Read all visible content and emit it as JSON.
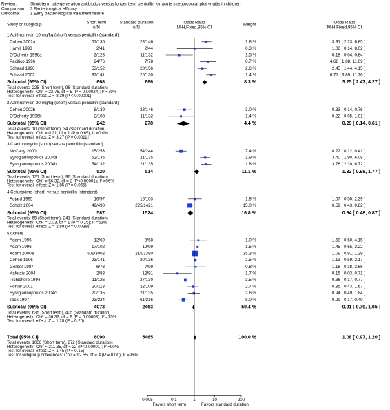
{
  "chart_data": {
    "type": "forest",
    "header": [
      {
        "label": "Review:",
        "text": "Short-term late-generation antibiotics versus longer term penicillin for acute streptococcal pharyngitis in children"
      },
      {
        "label": "Comparison:",
        "text": "3 Bacteriological efficacy"
      },
      {
        "label": "Outcome:",
        "text": "1 Early bacteriological treatment failure"
      }
    ],
    "columns": {
      "study": "Study or subgroup",
      "exp": [
        "Short term",
        "n/N"
      ],
      "ctrl": [
        "Standard duration",
        "n/N"
      ],
      "plot": [
        "Odds Ratio",
        "M-H,Fixed,95% CI"
      ],
      "weight": "Weight",
      "or": [
        "Odds Ratio",
        "M-H,Fixed,95% CI"
      ]
    },
    "log_scale": true,
    "xlim": [
      0.005,
      200
    ],
    "xticks": [
      0.005,
      0.1,
      1,
      10,
      200
    ],
    "box_color": "#1f3fd0",
    "favors_left": "Favors short term",
    "favors_right": "Favors standard duration",
    "groups": [
      {
        "title": "1 Azithromycin 10 mg/kg (short) versus penicillin (standard)",
        "studies": [
          {
            "name": "Cohen 2002a",
            "exp": "57/135",
            "ctrl": "23/146",
            "weight": 1.8,
            "weight_label": "1.8 %",
            "or": 3.91,
            "ci": [
              2.23,
              6.85
            ],
            "or_label": "3.91 [ 2.23, 6.85 ]"
          },
          {
            "name": "Hamill 1993",
            "exp": "2/41",
            "ctrl": "2/44",
            "weight": 0.3,
            "weight_label": "0.3 %",
            "or": 1.08,
            "ci": [
              0.14,
              8.02
            ],
            "or_label": "1.08 [ 0.14, 8.02 ]"
          },
          {
            "name": "O'Doherty 1996a",
            "exp": "2/123",
            "ctrl": "11/132",
            "weight": 1.5,
            "weight_label": "1.5 %",
            "or": 0.18,
            "ci": [
              0.04,
              0.84
            ],
            "or_label": "0.18 [ 0.04, 0.84 ]"
          },
          {
            "name": "Pacifico 1996",
            "exp": "24/76",
            "ctrl": "7/78",
            "weight": 0.7,
            "weight_label": "0.7 %",
            "or": 4.68,
            "ci": [
              1.88,
              11.69
            ],
            "or_label": "4.68 [ 1.88, 11.69 ]"
          },
          {
            "name": "Schaad 1996",
            "exp": "53/152",
            "ctrl": "28/156",
            "weight": 2.6,
            "weight_label": "2.6 %",
            "or": 2.45,
            "ci": [
              1.44,
              4.15
            ],
            "or_label": "2.45 [ 1.44, 4.15 ]"
          },
          {
            "name": "Schaad 2002",
            "exp": "87/141",
            "ctrl": "25/130",
            "weight": 1.4,
            "weight_label": "1.4 %",
            "or": 6.77,
            "ci": [
              3.89,
              11.76
            ],
            "or_label": "6.77 [ 3.89, 11.76 ]"
          }
        ],
        "subtotal": {
          "label": "Subtotal (95% CI)",
          "exp": 668,
          "ctrl": 686,
          "weight": 8.3,
          "weight_label": "8.3 %",
          "or": 3.25,
          "ci": [
            2.47,
            4.27
          ],
          "or_label": "3.25 [ 2.47, 4.27 ]"
        },
        "notes": [
          "Total events: 225 (Short term), 96 (Standard duration)",
          "Heterogeneity: Chi² = 23.76, df = 5 (P = 0.00024); I² =79%",
          "Test for overall effect: Z = 8.39 (P < 0.00001)"
        ]
      },
      {
        "title": "2 Azithromycin 20 mg/kg (short) versus penicillin (standard)",
        "studies": [
          {
            "name": "Cohen 2002b",
            "exp": "8/139",
            "ctrl": "23/146",
            "weight": 3.0,
            "weight_label": "3.0 %",
            "or": 0.33,
            "ci": [
              0.14,
              0.76
            ],
            "or_label": "0.33 [ 0.14, 0.76 ]"
          },
          {
            "name": "O'Doherty 1996b",
            "exp": "2/103",
            "ctrl": "11/132",
            "weight": 1.4,
            "weight_label": "1.4 %",
            "or": 0.22,
            "ci": [
              0.05,
              1.01
            ],
            "or_label": "0.22 [ 0.05, 1.01 ]"
          }
        ],
        "subtotal": {
          "label": "Subtotal (95% CI)",
          "exp": 242,
          "ctrl": 278,
          "weight": 4.4,
          "weight_label": "4.4 %",
          "or": 0.29,
          "ci": [
            0.14,
            0.61
          ],
          "or_label": "0.29 [ 0.14, 0.61 ]"
        },
        "notes": [
          "Total events: 10 (Short term), 34 (Standard duration)",
          "Heterogeneity: Chi² = 0.21, df = 1 (P = 0.65); I² =0.0%",
          "Test for overall effect: Z = 3.27 (P = 0.0011)"
        ]
      },
      {
        "title": "3 Clarithromycin (short) versus penicillin (standard)",
        "studies": [
          {
            "name": "McCarty 2000",
            "exp": "15/253",
            "ctrl": "54/244",
            "weight": 7.4,
            "weight_label": "7.4 %",
            "or": 0.22,
            "ci": [
              0.12,
              0.41
            ],
            "or_label": "0.22 [ 0.12, 0.41 ]"
          },
          {
            "name": "Syrogiannopoulos 2004a",
            "exp": "52/135",
            "ctrl": "21/135",
            "weight": 1.9,
            "weight_label": "1.9 %",
            "or": 3.4,
            "ci": [
              1.9,
              6.08
            ],
            "or_label": "3.40 [ 1.90, 6.08 ]"
          },
          {
            "name": "Syrogiannopoulos 2004b",
            "exp": "54/132",
            "ctrl": "21/135",
            "weight": 1.8,
            "weight_label": "1.8 %",
            "or": 3.76,
            "ci": [
              2.1,
              6.72
            ],
            "or_label": "3.76 [ 2.10, 6.72 ]"
          }
        ],
        "subtotal": {
          "label": "Subtotal (95% CI)",
          "exp": 520,
          "ctrl": 514,
          "weight": 11.1,
          "weight_label": "11.1 %",
          "or": 1.32,
          "ci": [
            0.98,
            1.77
          ],
          "or_label": "1.32 [ 0.98, 1.77 ]"
        },
        "notes": [
          "Total events: 121 (Short term), 96 (Standard duration)",
          "Heterogeneity: Chi² = 56.32, df = 2 (P<0.00001); I² =96%",
          "Test for overall effect: Z = 1.85 (P = 0.065)"
        ]
      },
      {
        "title": "4 Cefuroxime (short) versus penicillin (standard)",
        "studies": [
          {
            "name": "Aujard 1995",
            "exp": "16/97",
            "ctrl": "16/103",
            "weight": 1.9,
            "weight_label": "1.9 %",
            "or": 1.07,
            "ci": [
              0.5,
              2.29
            ],
            "or_label": "1.07 [ 0.50, 2.29 ]"
          },
          {
            "name": "Scholz 2004",
            "exp": "49/490",
            "ctrl": "225/1421",
            "weight": 15.0,
            "weight_label": "15.0 %",
            "or": 0.59,
            "ci": [
              0.43,
              0.82
            ],
            "or_label": "0.59 [ 0.43, 0.82 ]"
          }
        ],
        "subtotal": {
          "label": "Subtotal (95% CI)",
          "exp": 587,
          "ctrl": 1524,
          "weight": 16.8,
          "weight_label": "16.8 %",
          "or": 0.64,
          "ci": [
            0.48,
            0.87
          ],
          "or_label": "0.64 [ 0.48, 0.87 ]"
        },
        "notes": [
          "Total events: 65 (Short term), 241 (Standard duration)",
          "Heterogeneity: Chi² = 2.03, df = 1 (P = 0.15); I² =51%",
          "Test for overall effect: Z = 2.89 (P = 0.0038)"
        ]
      },
      {
        "title": "5 Others",
        "studies": [
          {
            "name": "Adam 1995",
            "exp": "12/69",
            "ctrl": "8/68",
            "weight": 1.0,
            "weight_label": "1.0 %",
            "or": 1.58,
            "ci": [
              0.6,
              4.15
            ],
            "or_label": "1.58 [ 0.60, 4.15 ]"
          },
          {
            "name": "Adam 1996",
            "exp": "17/102",
            "ctrl": "12/99",
            "weight": 1.5,
            "weight_label": "1.5 %",
            "or": 1.45,
            "ci": [
              0.65,
              3.22
            ],
            "or_label": "1.45 [ 0.65, 3.22 ]"
          },
          {
            "name": "Adam 2000a",
            "exp": "501/3002",
            "ctrl": "215/1380",
            "weight": 35.3,
            "weight_label": "35.3 %",
            "or": 1.09,
            "ci": [
              0.91,
              1.29
            ],
            "or_label": "1.09 [ 0.91, 1.29 ]"
          },
          {
            "name": "Cohen 1996",
            "exp": "23/141",
            "ctrl": "20/136",
            "weight": 2.5,
            "weight_label": "2.5 %",
            "or": 1.13,
            "ci": [
              0.59,
              2.17
            ],
            "or_label": "1.13 [ 0.59, 2.17 ]"
          },
          {
            "name": "Gerber 1987",
            "exp": "6/73",
            "ctrl": "7/99",
            "weight": 0.8,
            "weight_label": "0.8 %",
            "or": 1.18,
            "ci": [
              0.38,
              3.66
            ],
            "or_label": "1.18 [ 0.38, 3.66 ]"
          },
          {
            "name": "Kafetzis 2004",
            "exp": "2/88",
            "ctrl": "12/91",
            "weight": 1.7,
            "weight_label": "1.7 %",
            "or": 0.15,
            "ci": [
              0.03,
              0.71
            ],
            "or_label": "0.15 [ 0.03, 0.71 ]"
          },
          {
            "name": "Pichichero 1994",
            "exp": "11/126",
            "ctrl": "27/130",
            "weight": 3.5,
            "weight_label": "3.5 %",
            "or": 0.36,
            "ci": [
              0.17,
              0.77
            ],
            "or_label": "0.36 [ 0.17, 0.77 ]"
          },
          {
            "name": "Portier 2001",
            "exp": "20/113",
            "ctrl": "22/109",
            "weight": 2.7,
            "weight_label": "2.7 %",
            "or": 0.85,
            "ci": [
              0.43,
              1.67
            ],
            "or_label": "0.85 [ 0.43, 1.67 ]"
          },
          {
            "name": "Syrogiannopoulos 2004c",
            "exp": "20/135",
            "ctrl": "21/135",
            "weight": 2.6,
            "weight_label": "2.6 %",
            "or": 0.94,
            "ci": [
              0.49,
              1.84
            ],
            "or_label": "0.94 [ 0.49, 1.84 ]"
          },
          {
            "name": "Tack 1997",
            "exp": "23/224",
            "ctrl": "61/216",
            "weight": 8.0,
            "weight_label": "8.0 %",
            "or": 0.29,
            "ci": [
              0.17,
              0.49
            ],
            "or_label": "0.29 [ 0.17, 0.49 ]"
          }
        ],
        "subtotal": {
          "label": "Subtotal (95% CI)",
          "exp": 4073,
          "ctrl": 2463,
          "weight": 59.4,
          "weight_label": "59.4 %",
          "or": 0.91,
          "ci": [
            0.79,
            1.05
          ],
          "or_label": "0.91 [ 0.79, 1.05 ]"
        },
        "notes": [
          "Total events: 635 (Short term), 405 (Standard duration)",
          "Heterogeneity: Chi² = 36.33, df = 9 (P = 0.00003); I² =75%",
          "Test for overall effect: Z = 1.28 (P = 0.20)"
        ]
      }
    ],
    "total": {
      "label": "Total (95% CI)",
      "exp": 6090,
      "ctrl": 5465,
      "weight": 100.0,
      "weight_label": "100.0 %",
      "or": 1.08,
      "ci": [
        0.97,
        1.2
      ],
      "or_label": "1.08 [ 0.97, 1.20 ]"
    },
    "total_notes": [
      "Total events: 1056 (Short term), 872 (Standard duration)",
      "Heterogeneity: Chi² = 211.35, df = 22 (P<0.00001); I² =90%",
      "Test for overall effect: Z = 1.45 (P = 0.15)",
      "Test for subgroup differences: Chi² = 92.55, df = 4 (P = 0.00), I² =96%"
    ]
  }
}
